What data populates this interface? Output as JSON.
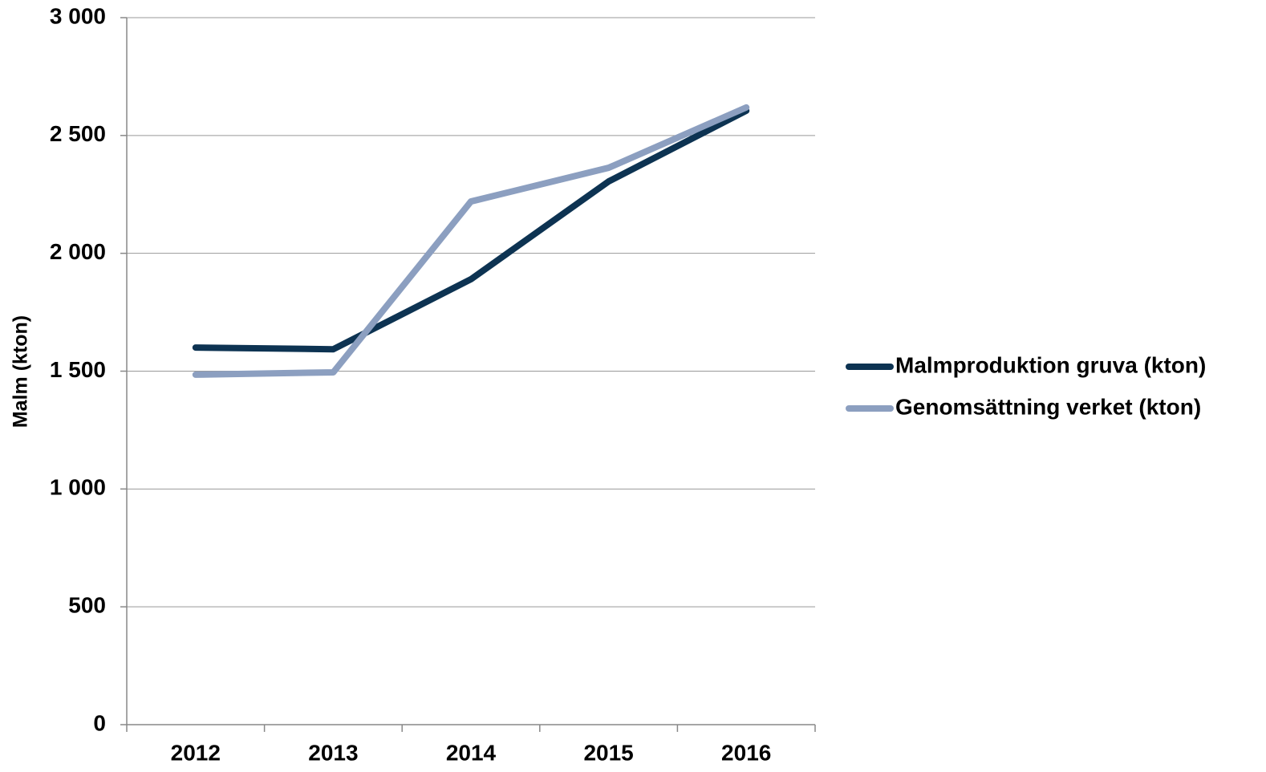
{
  "chart_data": {
    "type": "line",
    "y_label": "Malm (kton)",
    "categories": [
      "2012",
      "2013",
      "2014",
      "2015",
      "2016"
    ],
    "series": [
      {
        "name": "Malmproduktion gruva (kton)",
        "color": "#0d3352",
        "values": [
          1600,
          1593,
          1890,
          2305,
          2605
        ]
      },
      {
        "name": "Genomsättning verket (kton)",
        "color": "#8c9fc0",
        "values": [
          1485,
          1495,
          2220,
          2363,
          2619
        ]
      }
    ],
    "ylim": [
      0,
      3000
    ],
    "yticks": [
      0,
      500,
      {
        "value": 1000,
        "label": "1 000"
      },
      {
        "value": 1500,
        "label": "1 500"
      },
      {
        "value": 2000,
        "label": "2 000"
      },
      {
        "value": 2500,
        "label": "2 500"
      },
      {
        "value": 3000,
        "label": "3 000"
      }
    ],
    "grid": true,
    "legend": "right"
  }
}
